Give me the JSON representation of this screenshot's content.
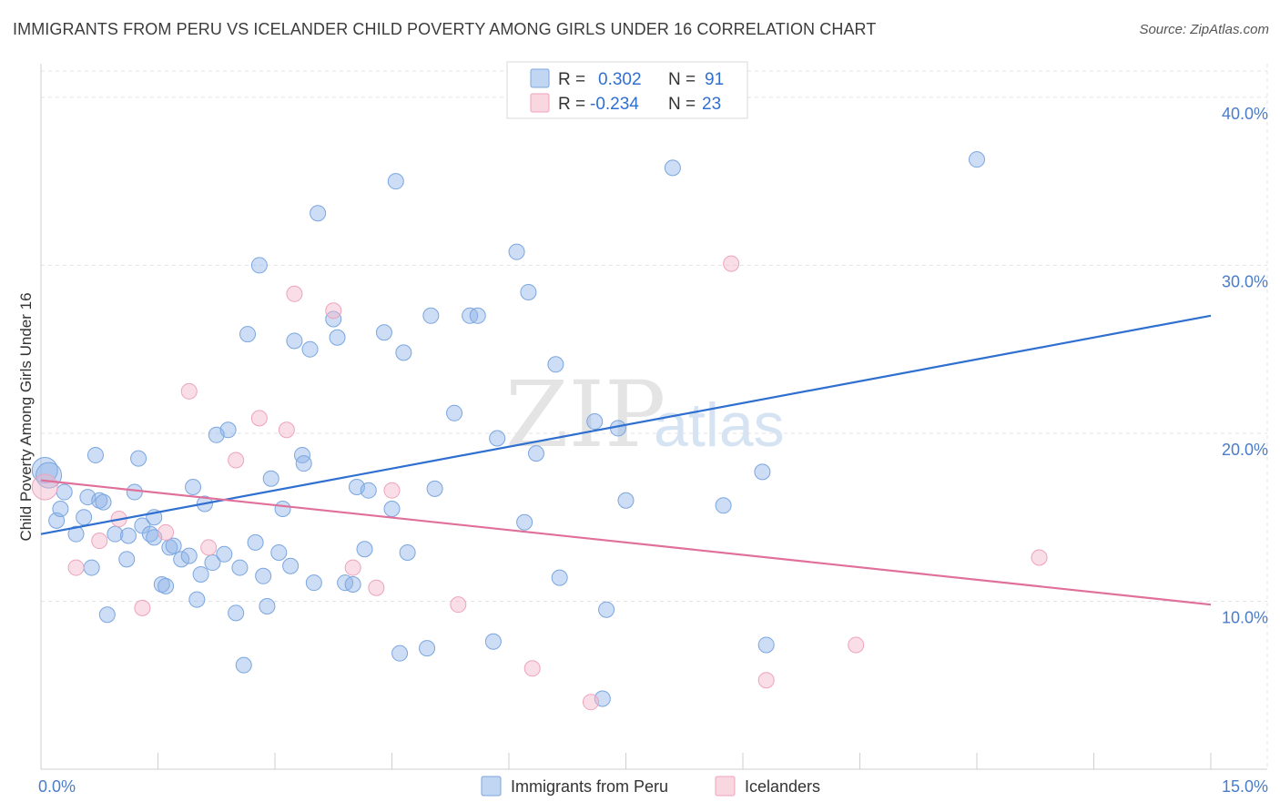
{
  "title": "IMMIGRANTS FROM PERU VS ICELANDER CHILD POVERTY AMONG GIRLS UNDER 16 CORRELATION CHART",
  "source": "Source: ZipAtlas.com",
  "watermark": {
    "zip": "ZIP",
    "atlas": "atlas"
  },
  "chart_data": {
    "type": "scatter",
    "ylabel": "Child Poverty Among Girls Under 16",
    "xlim": [
      0,
      15
    ],
    "ylim": [
      0,
      42
    ],
    "x_tick_labels": [
      {
        "value": 0,
        "label": "0.0%"
      },
      {
        "value": 15,
        "label": "15.0%"
      }
    ],
    "y_tick_labels": [
      {
        "value": 10,
        "label": "10.0%"
      },
      {
        "value": 20,
        "label": "20.0%"
      },
      {
        "value": 30,
        "label": "30.0%"
      },
      {
        "value": 40,
        "label": "40.0%"
      }
    ],
    "grid": true,
    "legend": {
      "placement": "top-center",
      "rows": [
        {
          "r_label": "R =",
          "r_value": "0.302",
          "n_label": "N =",
          "n_value": "91"
        },
        {
          "r_label": "R =",
          "r_value": "-0.234",
          "n_label": "N =",
          "n_value": "23"
        }
      ]
    },
    "series": [
      {
        "name": "Immigrants from Peru",
        "color": "#8db4e8",
        "line_color": "#2f6fd0",
        "trend": [
          [
            0,
            14.0
          ],
          [
            15,
            27.0
          ]
        ],
        "points": [
          [
            0.05,
            17.8
          ],
          [
            0.1,
            17.5
          ],
          [
            0.2,
            14.8
          ],
          [
            0.3,
            16.5
          ],
          [
            0.25,
            15.5
          ],
          [
            0.45,
            14.0
          ],
          [
            0.55,
            15.0
          ],
          [
            0.6,
            16.2
          ],
          [
            0.65,
            12.0
          ],
          [
            0.7,
            18.7
          ],
          [
            0.75,
            16.0
          ],
          [
            0.8,
            15.9
          ],
          [
            0.85,
            9.2
          ],
          [
            0.95,
            14.0
          ],
          [
            1.1,
            12.5
          ],
          [
            1.2,
            16.5
          ],
          [
            1.25,
            18.5
          ],
          [
            1.3,
            14.5
          ],
          [
            1.4,
            14.0
          ],
          [
            1.45,
            15.0
          ],
          [
            1.55,
            11.0
          ],
          [
            1.6,
            10.9
          ],
          [
            1.65,
            13.2
          ],
          [
            1.7,
            13.3
          ],
          [
            1.8,
            12.5
          ],
          [
            1.9,
            12.7
          ],
          [
            1.95,
            16.8
          ],
          [
            2.0,
            10.1
          ],
          [
            2.05,
            11.6
          ],
          [
            2.1,
            15.8
          ],
          [
            2.2,
            12.3
          ],
          [
            2.25,
            19.9
          ],
          [
            2.35,
            12.8
          ],
          [
            2.4,
            20.2
          ],
          [
            2.5,
            9.3
          ],
          [
            2.55,
            12.0
          ],
          [
            2.6,
            6.2
          ],
          [
            2.65,
            25.9
          ],
          [
            2.75,
            13.5
          ],
          [
            2.8,
            30.0
          ],
          [
            2.85,
            11.5
          ],
          [
            2.9,
            9.7
          ],
          [
            2.95,
            17.3
          ],
          [
            3.05,
            12.9
          ],
          [
            3.1,
            15.5
          ],
          [
            3.2,
            12.1
          ],
          [
            3.25,
            25.5
          ],
          [
            3.35,
            18.7
          ],
          [
            3.37,
            18.2
          ],
          [
            3.45,
            25.0
          ],
          [
            3.5,
            11.1
          ],
          [
            3.55,
            33.1
          ],
          [
            3.75,
            26.8
          ],
          [
            3.8,
            25.7
          ],
          [
            3.9,
            11.1
          ],
          [
            4.0,
            11.0
          ],
          [
            4.05,
            16.8
          ],
          [
            4.15,
            13.1
          ],
          [
            4.2,
            16.6
          ],
          [
            4.4,
            26.0
          ],
          [
            4.5,
            15.5
          ],
          [
            4.55,
            35.0
          ],
          [
            4.6,
            6.9
          ],
          [
            4.65,
            24.8
          ],
          [
            4.7,
            12.9
          ],
          [
            4.95,
            7.2
          ],
          [
            5.0,
            27.0
          ],
          [
            5.05,
            16.7
          ],
          [
            5.3,
            21.2
          ],
          [
            5.5,
            27.0
          ],
          [
            5.6,
            27.0
          ],
          [
            5.8,
            7.6
          ],
          [
            5.85,
            19.7
          ],
          [
            6.1,
            30.8
          ],
          [
            6.25,
            28.4
          ],
          [
            6.2,
            14.7
          ],
          [
            6.35,
            18.8
          ],
          [
            6.6,
            24.1
          ],
          [
            6.65,
            11.4
          ],
          [
            7.1,
            20.7
          ],
          [
            7.2,
            4.2
          ],
          [
            7.25,
            9.5
          ],
          [
            7.4,
            20.3
          ],
          [
            7.5,
            16.0
          ],
          [
            8.1,
            35.8
          ],
          [
            8.75,
            15.7
          ],
          [
            9.25,
            17.7
          ],
          [
            9.3,
            7.4
          ],
          [
            12.0,
            36.3
          ],
          [
            1.45,
            13.8
          ],
          [
            1.12,
            13.9
          ]
        ]
      },
      {
        "name": "Icelanders",
        "color": "#f4b6c9",
        "line_color": "#e0709a",
        "trend": [
          [
            0,
            17.2
          ],
          [
            15,
            9.8
          ]
        ],
        "points": [
          [
            0.05,
            16.8
          ],
          [
            0.45,
            12.0
          ],
          [
            0.75,
            13.6
          ],
          [
            1.0,
            14.9
          ],
          [
            1.3,
            9.6
          ],
          [
            1.6,
            14.1
          ],
          [
            1.9,
            22.5
          ],
          [
            2.15,
            13.2
          ],
          [
            2.5,
            18.4
          ],
          [
            2.8,
            20.9
          ],
          [
            3.15,
            20.2
          ],
          [
            3.25,
            28.3
          ],
          [
            3.75,
            27.3
          ],
          [
            4.0,
            12.0
          ],
          [
            4.3,
            10.8
          ],
          [
            4.5,
            16.6
          ],
          [
            5.35,
            9.8
          ],
          [
            6.3,
            6.0
          ],
          [
            7.05,
            4.0
          ],
          [
            8.85,
            30.1
          ],
          [
            9.3,
            5.3
          ],
          [
            10.45,
            7.4
          ],
          [
            12.8,
            12.6
          ]
        ]
      }
    ]
  }
}
